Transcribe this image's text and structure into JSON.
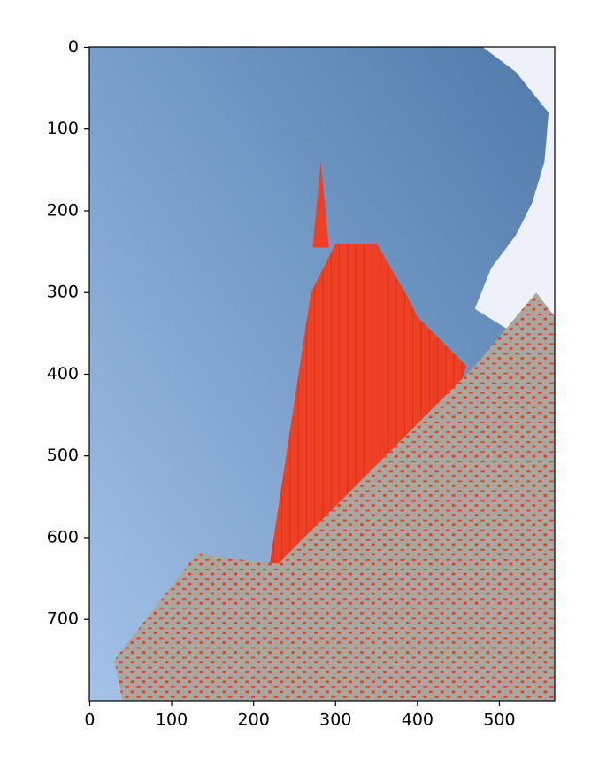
{
  "chart_data": {
    "type": "image",
    "xlim": [
      -0.5,
      567.5
    ],
    "ylim": [
      799.5,
      -0.5
    ],
    "xticks": [
      0,
      100,
      200,
      300,
      400,
      500
    ],
    "yticks": [
      0,
      100,
      200,
      300,
      400,
      500,
      600,
      700
    ]
  }
}
